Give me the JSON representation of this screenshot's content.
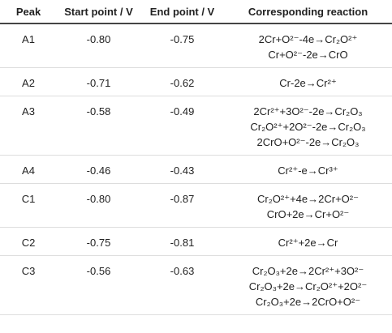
{
  "table": {
    "header": [
      "Peak",
      "Start point / V",
      "End point / V",
      "Corresponding reaction"
    ],
    "rows": [
      {
        "peak": "A1",
        "start": "-0.80",
        "end": "-0.75",
        "reactions": [
          "2Cr+O²⁻-4e→Cr₂O²⁺",
          "Cr+O²⁻-2e→CrO"
        ]
      },
      {
        "peak": "A2",
        "start": "-0.71",
        "end": "-0.62",
        "reactions": [
          "Cr-2e→Cr²⁺"
        ]
      },
      {
        "peak": "A3",
        "start": "-0.58",
        "end": "-0.49",
        "reactions": [
          "2Cr²⁺+3O²⁻-2e→Cr₂O₃",
          "Cr₂O²⁺+2O²⁻-2e→Cr₂O₃",
          "2CrO+O²⁻-2e→Cr₂O₃"
        ]
      },
      {
        "peak": "A4",
        "start": "-0.46",
        "end": "-0.43",
        "reactions": [
          "Cr²⁺-e→Cr³⁺"
        ]
      },
      {
        "peak": "C1",
        "start": "-0.80",
        "end": "-0.87",
        "reactions": [
          "Cr₂O²⁺+4e→2Cr+O²⁻",
          "CrO+2e→Cr+O²⁻"
        ]
      },
      {
        "peak": "C2",
        "start": "-0.75",
        "end": "-0.81",
        "reactions": [
          "Cr²⁺+2e→Cr"
        ]
      },
      {
        "peak": "C3",
        "start": "-0.56",
        "end": "-0.63",
        "reactions": [
          "Cr₂O₃+2e→2Cr²⁺+3O²⁻",
          "Cr₂O₃+2e→Cr₂O²⁺+2O²⁻",
          "Cr₂O₃+2e→2CrO+O²⁻"
        ]
      }
    ]
  }
}
